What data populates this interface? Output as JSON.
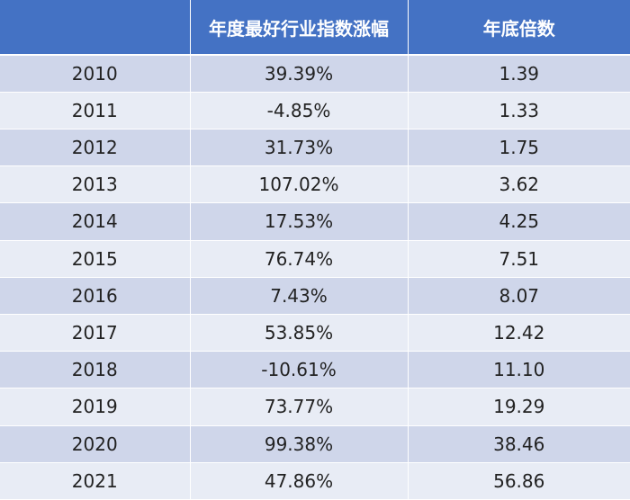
{
  "table": {
    "headers": [
      "",
      "年度最好行业指数涨幅",
      "年底倍数"
    ],
    "rows": [
      [
        "2010",
        "39.39%",
        "1.39"
      ],
      [
        "2011",
        "-4.85%",
        "1.33"
      ],
      [
        "2012",
        "31.73%",
        "1.75"
      ],
      [
        "2013",
        "107.02%",
        "3.62"
      ],
      [
        "2014",
        "17.53%",
        "4.25"
      ],
      [
        "2015",
        "76.74%",
        "7.51"
      ],
      [
        "2016",
        "7.43%",
        "8.07"
      ],
      [
        "2017",
        "53.85%",
        "12.42"
      ],
      [
        "2018",
        "-10.61%",
        "11.10"
      ],
      [
        "2019",
        "73.77%",
        "19.29"
      ],
      [
        "2020",
        "99.38%",
        "38.46"
      ],
      [
        "2021",
        "47.86%",
        "56.86"
      ]
    ]
  },
  "colors": {
    "header_bg": "#4472c4",
    "row_dark": "#cfd6ea",
    "row_light": "#e8ecf5"
  }
}
